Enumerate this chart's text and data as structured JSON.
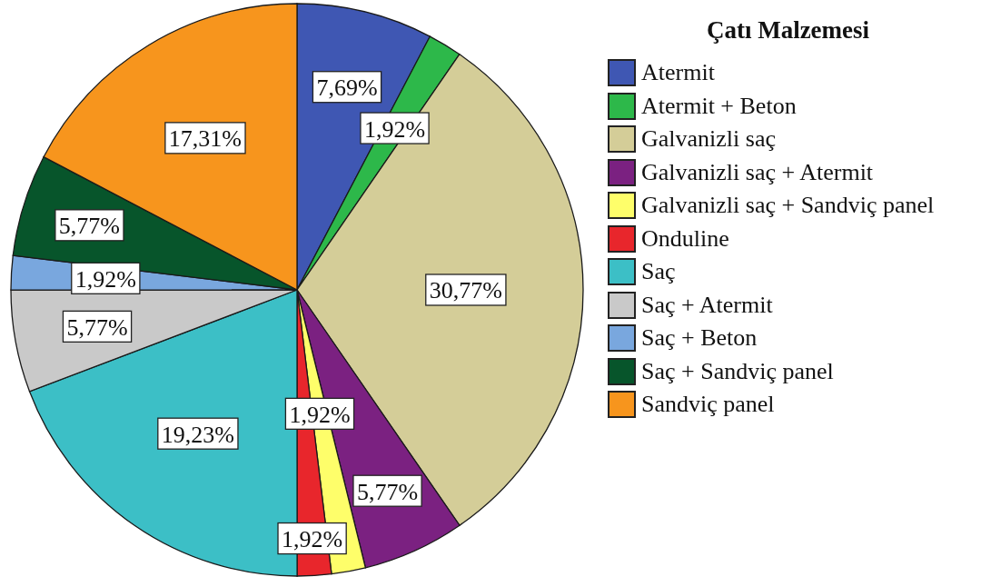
{
  "chart_data": {
    "type": "pie",
    "legend_title": "Çatı Malzemesi",
    "legend": "right",
    "categories": [
      "Atermit",
      "Atermit + Beton",
      "Galvanizli saç",
      "Galvanizli saç + Atermit",
      "Galvanizli saç + Sandviç panel",
      "Onduline",
      "Saç",
      "Saç + Atermit",
      "Saç + Beton",
      "Saç + Sandviç panel",
      "Sandviç panel"
    ],
    "values": [
      7.69,
      1.92,
      30.77,
      5.77,
      1.92,
      1.92,
      19.23,
      5.77,
      1.92,
      5.77,
      17.31
    ],
    "value_labels": [
      "7,69%",
      "1,92%",
      "30,77%",
      "5,77%",
      "1,92%",
      "1,92%",
      "19,23%",
      "5,77%",
      "1,92%",
      "5,77%",
      "17,31%"
    ],
    "colors": [
      "#3f57b3",
      "#2db84a",
      "#d4cd98",
      "#7b2181",
      "#fefe6a",
      "#e8262c",
      "#3cbfc6",
      "#c9c9c9",
      "#79a7de",
      "#07552b",
      "#f7951d"
    ]
  }
}
